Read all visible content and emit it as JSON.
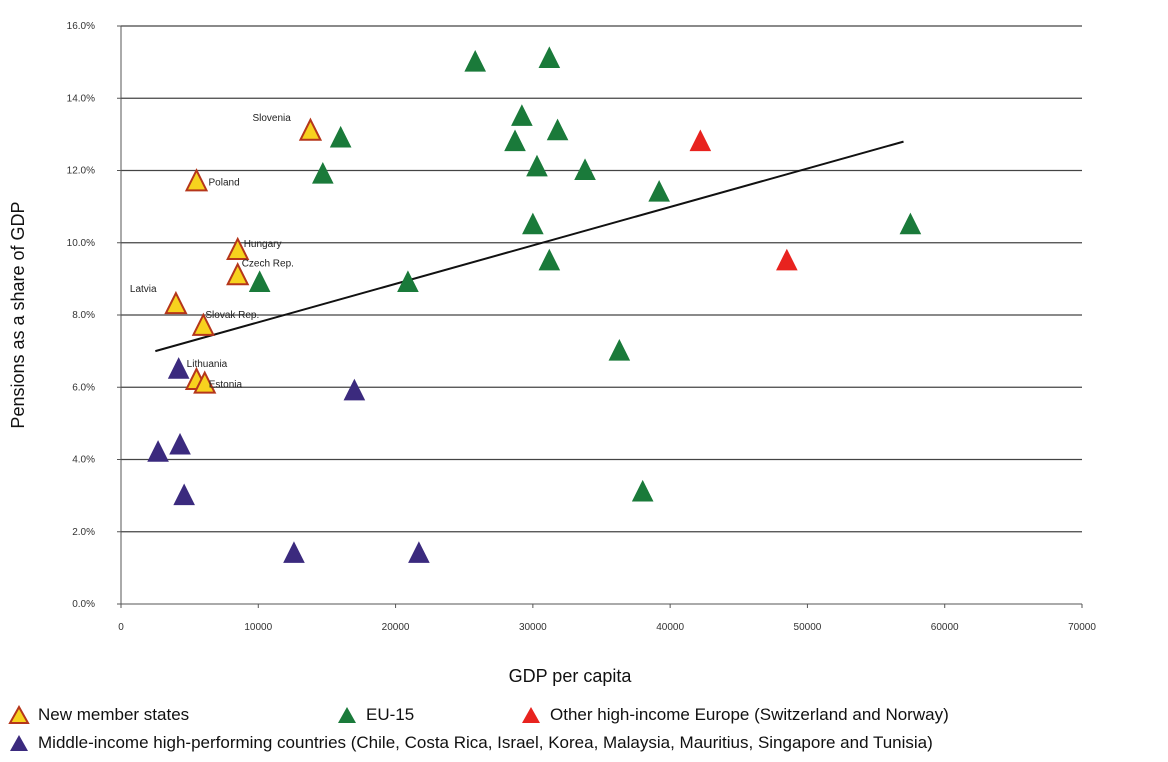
{
  "chart_data": {
    "type": "scatter",
    "title": "",
    "xlabel": "GDP per capita",
    "ylabel": "Pensions as a share of GDP",
    "xlim": [
      0,
      70000
    ],
    "ylim": [
      0,
      16
    ],
    "x_ticks": [
      "0",
      "10000",
      "20000",
      "30000",
      "40000",
      "50000",
      "60000",
      "70000"
    ],
    "y_ticks": [
      "0.0%",
      "2.0%",
      "4.0%",
      "6.0%",
      "8.0%",
      "10.0%",
      "12.0%",
      "14.0%",
      "16.0%"
    ],
    "grid": "horizontal",
    "legend_position": "bottom",
    "series": [
      {
        "name": "New member states",
        "color": "#f7d21e",
        "stroke": "#b5361b",
        "points": [
          {
            "x": 13800,
            "y": 13.1,
            "label": "Slovenia"
          },
          {
            "x": 5500,
            "y": 11.7,
            "label": "Poland"
          },
          {
            "x": 8500,
            "y": 9.8,
            "label": "Hungary"
          },
          {
            "x": 8500,
            "y": 9.1,
            "label": "Czech Rep."
          },
          {
            "x": 4000,
            "y": 8.3,
            "label": "Latvia"
          },
          {
            "x": 6000,
            "y": 7.7,
            "label": "Slovak Rep."
          },
          {
            "x": 5500,
            "y": 6.2,
            "label": ""
          },
          {
            "x": 6100,
            "y": 6.1,
            "label": "Estonia"
          }
        ]
      },
      {
        "name": "EU-15",
        "color": "#1a7a3a",
        "stroke": "#1a7a3a",
        "points": [
          {
            "x": 25800,
            "y": 15.0
          },
          {
            "x": 31200,
            "y": 15.1
          },
          {
            "x": 29200,
            "y": 13.5
          },
          {
            "x": 31800,
            "y": 13.1
          },
          {
            "x": 16000,
            "y": 12.9
          },
          {
            "x": 28700,
            "y": 12.8
          },
          {
            "x": 30300,
            "y": 12.1
          },
          {
            "x": 33800,
            "y": 12.0
          },
          {
            "x": 14700,
            "y": 11.9
          },
          {
            "x": 39200,
            "y": 11.4
          },
          {
            "x": 30000,
            "y": 10.5
          },
          {
            "x": 57500,
            "y": 10.5
          },
          {
            "x": 31200,
            "y": 9.5
          },
          {
            "x": 10100,
            "y": 8.9
          },
          {
            "x": 20900,
            "y": 8.9
          },
          {
            "x": 36300,
            "y": 7.0
          },
          {
            "x": 38000,
            "y": 3.1
          }
        ]
      },
      {
        "name": "Other high-income Europe (Switzerland and Norway)",
        "color": "#e8231f",
        "stroke": "#e8231f",
        "points": [
          {
            "x": 42200,
            "y": 12.8
          },
          {
            "x": 48500,
            "y": 9.5
          }
        ]
      },
      {
        "name": "Middle-income high-performing countries (Chile, Costa Rica, Israel, Korea, Malaysia, Mauritius, Singapore and Tunisia)",
        "color": "#3b2a7e",
        "stroke": "#3b2a7e",
        "points": [
          {
            "x": 4200,
            "y": 6.5,
            "label": "Lithuania"
          },
          {
            "x": 17000,
            "y": 5.9
          },
          {
            "x": 2700,
            "y": 4.2
          },
          {
            "x": 4300,
            "y": 4.4
          },
          {
            "x": 4600,
            "y": 3.0
          },
          {
            "x": 12600,
            "y": 1.4
          },
          {
            "x": 21700,
            "y": 1.4
          }
        ]
      }
    ],
    "trendline": {
      "x": [
        2500,
        57000
      ],
      "y": [
        7.0,
        12.8
      ]
    }
  }
}
